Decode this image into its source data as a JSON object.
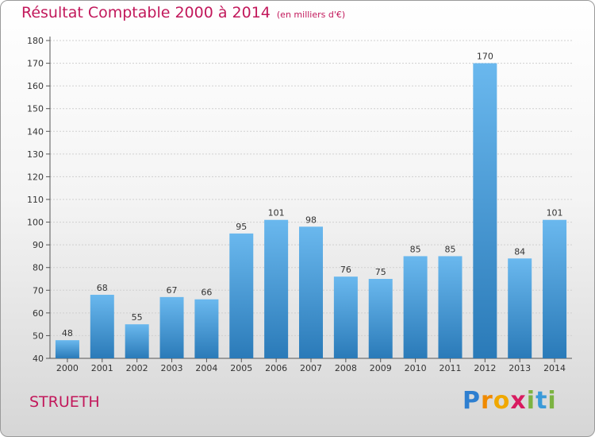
{
  "header": {
    "title": "Résultat Comptable 2000 à 2014",
    "subtitle": "(en milliers d'€)"
  },
  "footer": {
    "commune": "STRUETH",
    "logo_text": "Proxiti"
  },
  "colors": {
    "title": "#c2185b",
    "bar_light": "#6ab8ee",
    "bar_dark": "#2a7ab8"
  },
  "chart_data": {
    "type": "bar",
    "title": "Résultat Comptable 2000 à 2014",
    "subtitle": "(en milliers d'€)",
    "categories": [
      "2000",
      "2001",
      "2002",
      "2003",
      "2004",
      "2005",
      "2006",
      "2007",
      "2008",
      "2009",
      "2010",
      "2011",
      "2012",
      "2013",
      "2014"
    ],
    "values": [
      48,
      68,
      55,
      67,
      66,
      95,
      101,
      98,
      76,
      75,
      85,
      85,
      170,
      84,
      101
    ],
    "ylim": [
      40,
      180
    ],
    "yticks": [
      40,
      50,
      60,
      70,
      80,
      90,
      100,
      110,
      120,
      130,
      140,
      150,
      160,
      170,
      180
    ],
    "grid": true,
    "data_labels": true
  }
}
